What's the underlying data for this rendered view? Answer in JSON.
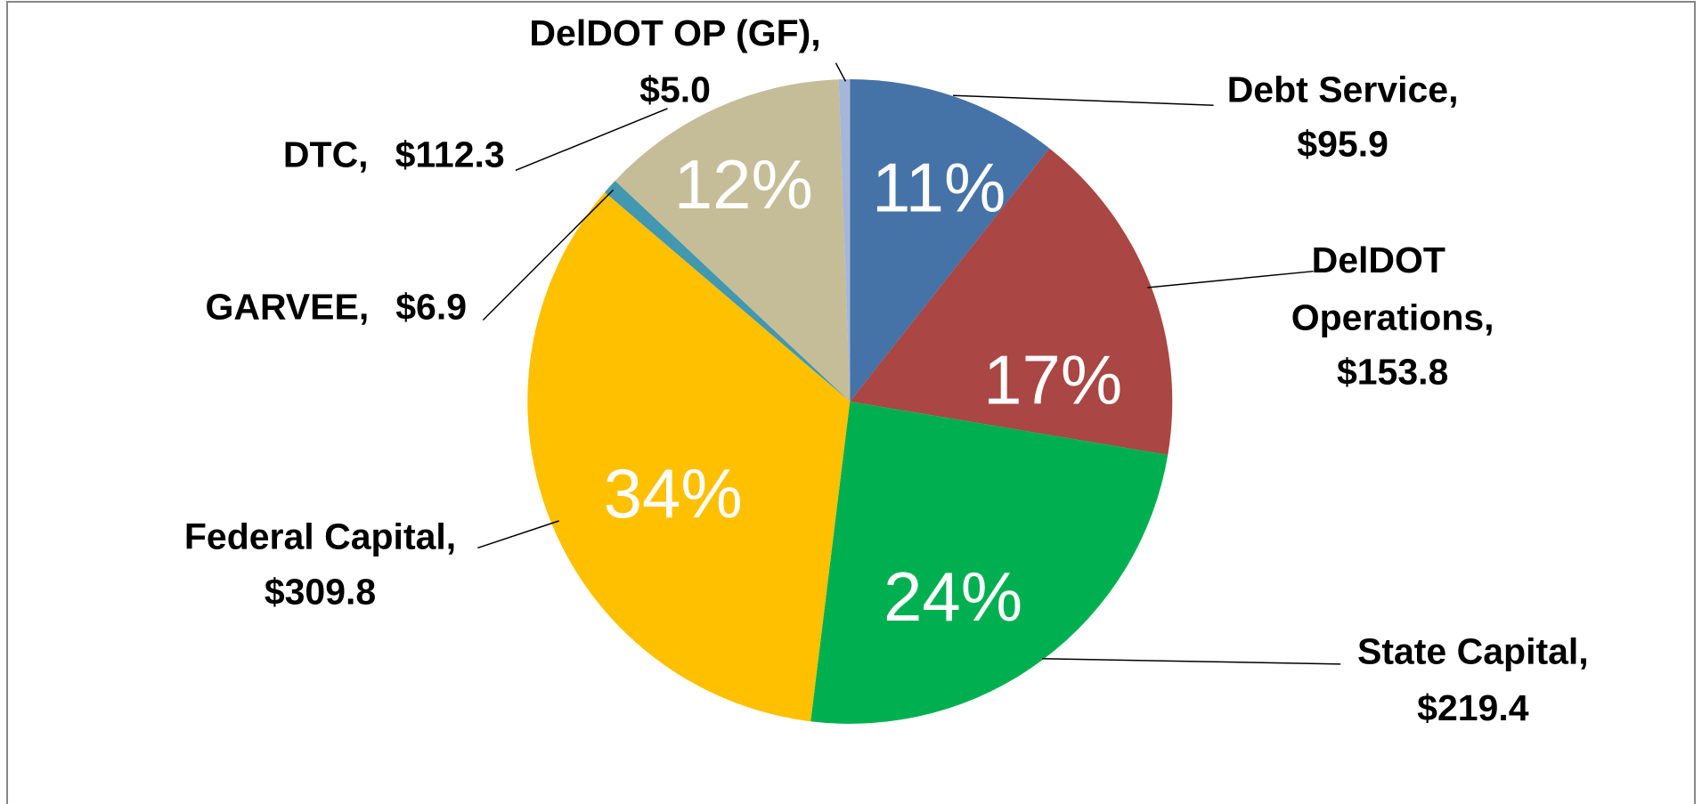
{
  "chart_data": {
    "type": "pie",
    "categories": [
      "Debt Service,",
      "DelDOT Operations,",
      "State Capital,",
      "Federal Capital,",
      "GARVEE,",
      "DTC,",
      "DelDOT OP (GF),"
    ],
    "values": [
      95.9,
      153.8,
      219.4,
      309.8,
      6.9,
      112.3,
      5.0
    ],
    "value_labels": [
      "$95.9",
      "$153.8",
      "$219.4",
      "$309.8",
      "$6.9",
      "$112.3",
      "$5.0"
    ],
    "percent_labels": [
      "11%",
      "17%",
      "24%",
      "34%",
      null,
      "12%",
      null
    ],
    "colors": [
      "#4572a7",
      "#aa4643",
      "#00b050",
      "#ffc000",
      "#4198af",
      "#c4bd97",
      "#a5b6d8"
    ]
  }
}
